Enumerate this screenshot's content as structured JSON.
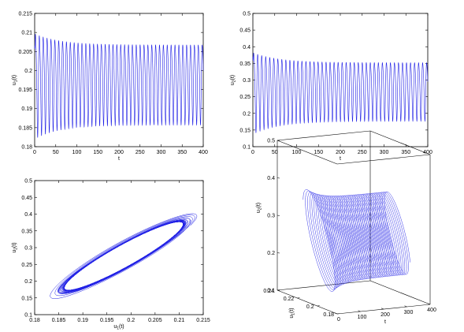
{
  "figure": {
    "line_color": "#2020e6",
    "axes_color": "#000000",
    "background": "#ffffff"
  },
  "chart_data": [
    {
      "id": "u1-time",
      "type": "line",
      "xlabel": "t",
      "ylabel": "u1(t)",
      "ylabel_main": "u",
      "ylabel_sub": "1",
      "ylabel_tail": "(t)",
      "xlim": [
        0,
        400
      ],
      "ylim": [
        0.18,
        0.215
      ],
      "xticks": [
        0,
        50,
        100,
        150,
        200,
        250,
        300,
        350,
        400
      ],
      "xtick_labels": [
        "0",
        "50",
        "100",
        "150",
        "200",
        "250",
        "300",
        "350",
        "400"
      ],
      "yticks": [
        0.18,
        0.185,
        0.19,
        0.195,
        0.2,
        0.205,
        0.21,
        0.215
      ],
      "ytick_labels": [
        "0.18",
        "0.185",
        "0.19",
        "0.195",
        "0.2",
        "0.205",
        "0.21",
        "0.215"
      ],
      "grid": false,
      "series": [
        {
          "start_value": 0.2065,
          "period": 9.2,
          "center": 0.1975,
          "initial_amplitude": 0.0145,
          "final_amplitude": 0.011,
          "max_value": 0.2115,
          "min_value": 0.1815
        }
      ]
    },
    {
      "id": "u2-time",
      "type": "line",
      "xlabel": "t",
      "ylabel": "u2(t)",
      "ylabel_main": "u",
      "ylabel_sub": "2",
      "ylabel_tail": "(t)",
      "xlim": [
        0,
        400
      ],
      "ylim": [
        0.1,
        0.5
      ],
      "xticks": [
        0,
        50,
        100,
        150,
        200,
        250,
        300,
        350,
        400
      ],
      "xtick_labels": [
        "0",
        "50",
        "100",
        "150",
        "200",
        "250",
        "300",
        "350",
        "400"
      ],
      "yticks": [
        0.1,
        0.15,
        0.2,
        0.25,
        0.3,
        0.35,
        0.4,
        0.45,
        0.5
      ],
      "ytick_labels": [
        "0.1",
        "0.15",
        "0.2",
        "0.25",
        "0.3",
        "0.35",
        "0.4",
        "0.45",
        "0.5"
      ],
      "grid": false,
      "series": [
        {
          "start_value": 0.37,
          "period": 9.2,
          "center": 0.275,
          "initial_amplitude": 0.128,
          "final_amplitude": 0.092,
          "max_value": 0.41,
          "min_value": 0.145
        }
      ]
    },
    {
      "id": "phase-portrait",
      "type": "line",
      "xlabel": "u1(t)",
      "xlabel_main": "u",
      "xlabel_sub": "1",
      "xlabel_tail": "(t)",
      "ylabel": "u2(t)",
      "ylabel_main": "u",
      "ylabel_sub": "2",
      "ylabel_tail": "(t)",
      "xlim": [
        0.18,
        0.215
      ],
      "ylim": [
        0.1,
        0.5
      ],
      "xticks": [
        0.18,
        0.185,
        0.19,
        0.195,
        0.2,
        0.205,
        0.21,
        0.215
      ],
      "xtick_labels": [
        "0.18",
        "0.185",
        "0.19",
        "0.195",
        "0.2",
        "0.205",
        "0.21",
        "0.215"
      ],
      "yticks": [
        0.1,
        0.15,
        0.2,
        0.25,
        0.3,
        0.35,
        0.4,
        0.45,
        0.5
      ],
      "ytick_labels": [
        "0.1",
        "0.15",
        "0.2",
        "0.25",
        "0.3",
        "0.35",
        "0.4",
        "0.45",
        "0.5"
      ],
      "grid": false,
      "cycle": {
        "center_u1": 0.1985,
        "center_u2": 0.275,
        "u1_extent": [
          0.1835,
          0.2125
        ],
        "u2_extent": [
          0.155,
          0.41
        ]
      }
    },
    {
      "id": "3d-trajectory",
      "type": "line",
      "xlabel": "t",
      "ylabel": "u1(t)",
      "ylabel_main": "u",
      "ylabel_sub": "1",
      "ylabel_tail": "(t)",
      "zlabel": "u2(t)",
      "zlabel_main": "u",
      "zlabel_sub": "2",
      "zlabel_tail": "(t)",
      "tlim": [
        0,
        400
      ],
      "u1lim": [
        0.18,
        0.24
      ],
      "u2lim": [
        0.1,
        0.5
      ],
      "tticks": [
        0,
        100,
        200,
        300,
        400
      ],
      "ttick_labels": [
        "0",
        "100",
        "200",
        "300",
        "400"
      ],
      "u1ticks": [
        0.18,
        0.2,
        0.22,
        0.24
      ],
      "u1tick_labels": [
        "0.18",
        "0.2",
        "0.22",
        "0.24"
      ],
      "u2ticks": [
        0.1,
        0.2,
        0.3,
        0.4,
        0.5
      ],
      "u2tick_labels": [
        "0.1",
        "0.2",
        "0.3",
        "0.4",
        "0.5"
      ],
      "grid": false,
      "t_range": [
        0,
        400
      ]
    }
  ]
}
